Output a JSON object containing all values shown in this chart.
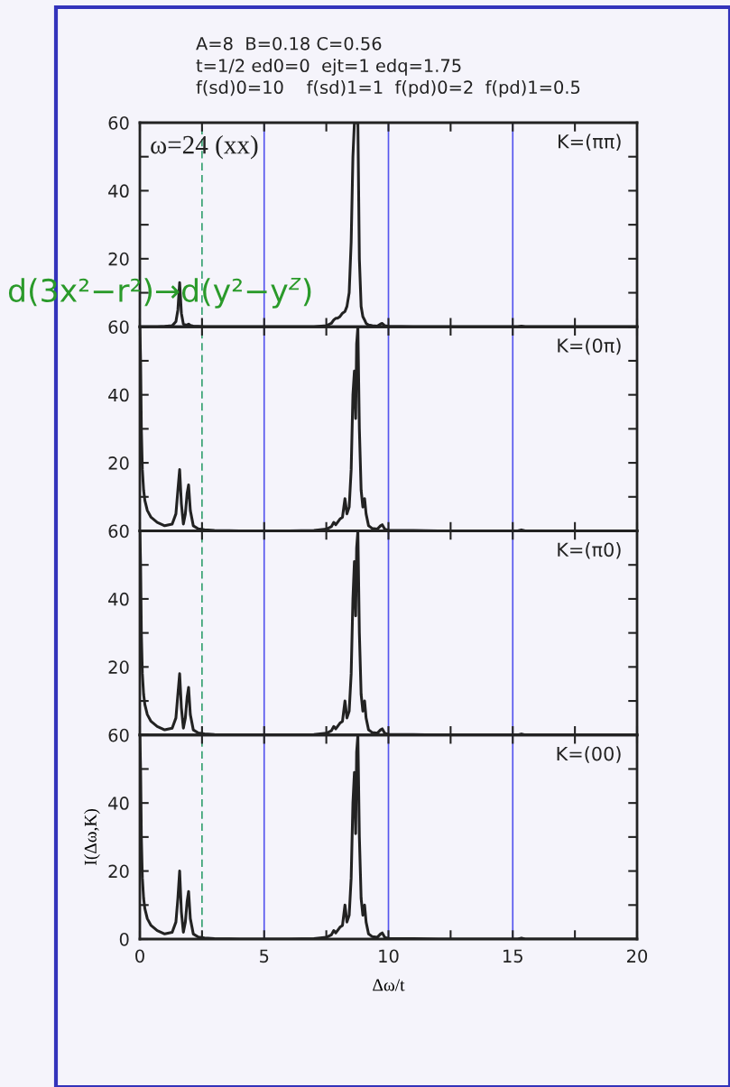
{
  "chart_data": [
    {
      "type": "line",
      "title": "A=8  B=0.18 C=0.56",
      "subtitle": "t=1/2 ed0=0  ejt=1 edq=1.75\nf(sd)0=10    f(sd)1=1  f(pd)0=2  f(pd)1=0.5",
      "annotations": [
        "K=(ππ)",
        "ω=24 (xx)",
        "d(3x²−r²)→d(y²−y$^{z}$)"
      ],
      "x": [
        0,
        0.03,
        0.06,
        0.1,
        0.15,
        0.2,
        0.3,
        0.45,
        0.7,
        1.0,
        1.3,
        1.45,
        1.53,
        1.6,
        1.67,
        1.75,
        1.83,
        1.9,
        1.96,
        2.03,
        2.15,
        2.35,
        2.6,
        3.0,
        4.0,
        5.0,
        6.0,
        7.0,
        7.5,
        7.7,
        7.8,
        7.88,
        7.95,
        8.05,
        8.15,
        8.25,
        8.33,
        8.42,
        8.5,
        8.57,
        8.63,
        8.68,
        8.72,
        8.77,
        8.83,
        8.9,
        8.97,
        9.04,
        9.1,
        9.2,
        9.35,
        9.55,
        9.68,
        9.75,
        9.85,
        10.0,
        11,
        12,
        14,
        15.2,
        15.35,
        15.5,
        17,
        20
      ],
      "series": [
        {
          "color": "#222222",
          "values": [
            0,
            0,
            0,
            0,
            0,
            0,
            0,
            0,
            0,
            0.1,
            0.3,
            1.5,
            5,
            13,
            4,
            0.8,
            0.6,
            0.5,
            0.8,
            0.4,
            0.2,
            0.1,
            0,
            0,
            0,
            0,
            0,
            0,
            0.3,
            1,
            2,
            2.5,
            2.5,
            3,
            4,
            4.5,
            6,
            10,
            25,
            50,
            60,
            60,
            60,
            60,
            20,
            6,
            3,
            2,
            1,
            0.5,
            0.3,
            0.2,
            0.8,
            1,
            0.3,
            0.1,
            0,
            0,
            0,
            0,
            0.2,
            0,
            0,
            0
          ]
        }
      ],
      "xlim": [
        0,
        20
      ],
      "xticks": [
        0,
        {
          "value": 2.5,
          "label": null
        },
        5,
        {
          "value": 7.5,
          "label": null
        },
        10,
        {
          "value": 12.5,
          "label": null
        },
        15,
        {
          "value": 17.5,
          "label": null
        },
        20
      ],
      "ylim": [
        0,
        60
      ],
      "yticks": [
        {
          "value": 0,
          "label": null
        },
        {
          "value": 10,
          "label": null
        },
        20,
        {
          "value": 30,
          "label": null
        },
        40,
        {
          "value": 50,
          "label": null
        },
        60
      ],
      "tick_labels": "y",
      "grid": false,
      "line_style": "solid",
      "marker": "none",
      "ref_lines": [
        {
          "axis": "x",
          "value": 2.5,
          "color": "#33a070",
          "line_style": "dashed"
        },
        {
          "axis": "x",
          "value": 5,
          "color": "#5555ee",
          "line_style": "solid"
        },
        {
          "axis": "x",
          "value": 10,
          "color": "#5555ee",
          "line_style": "solid"
        },
        {
          "axis": "x",
          "value": 15,
          "color": "#5555ee",
          "line_style": "solid"
        }
      ]
    },
    {
      "type": "line",
      "annotations": [
        "K=(0π)"
      ],
      "x": [
        0,
        0.03,
        0.06,
        0.1,
        0.15,
        0.2,
        0.3,
        0.45,
        0.7,
        1.0,
        1.3,
        1.45,
        1.53,
        1.6,
        1.67,
        1.75,
        1.83,
        1.9,
        1.96,
        2.03,
        2.15,
        2.35,
        2.6,
        3.0,
        4.0,
        5.0,
        6.0,
        7.0,
        7.5,
        7.7,
        7.8,
        7.88,
        7.95,
        8.05,
        8.15,
        8.25,
        8.33,
        8.42,
        8.5,
        8.57,
        8.63,
        8.68,
        8.72,
        8.77,
        8.83,
        8.9,
        8.97,
        9.04,
        9.1,
        9.2,
        9.35,
        9.55,
        9.68,
        9.75,
        9.85,
        10.0,
        11,
        12,
        14,
        15.2,
        15.35,
        15.5,
        17,
        20
      ],
      "series": [
        {
          "color": "#222222",
          "values": [
            60,
            50,
            30,
            18,
            12,
            9,
            6,
            4,
            2.5,
            1.5,
            2,
            5,
            12,
            18,
            8,
            2,
            5,
            11,
            13.5,
            6,
            1.5,
            0.6,
            0.3,
            0.1,
            0,
            0,
            0,
            0.1,
            0.5,
            1.2,
            2.5,
            1.8,
            2.5,
            3.5,
            4,
            9.5,
            5,
            7,
            18,
            40,
            47,
            33,
            55,
            60,
            30,
            12,
            7,
            9.5,
            5,
            1.5,
            0.7,
            0.5,
            1.5,
            1.8,
            0.5,
            0.2,
            0.1,
            0,
            0,
            0,
            0.3,
            0,
            0,
            0
          ]
        }
      ],
      "xlim": [
        0,
        20
      ],
      "xticks": [
        0,
        {
          "value": 2.5,
          "label": null
        },
        5,
        {
          "value": 7.5,
          "label": null
        },
        10,
        {
          "value": 12.5,
          "label": null
        },
        15,
        {
          "value": 17.5,
          "label": null
        },
        20
      ],
      "ylim": [
        0,
        60
      ],
      "yticks": [
        {
          "value": 0,
          "label": null
        },
        {
          "value": 10,
          "label": null
        },
        20,
        {
          "value": 30,
          "label": null
        },
        40,
        {
          "value": 50,
          "label": null
        },
        60
      ],
      "tick_labels": "y",
      "grid": false,
      "line_style": "solid",
      "marker": "none",
      "ref_lines": [
        {
          "axis": "x",
          "value": 2.5,
          "color": "#33a070",
          "line_style": "dashed"
        },
        {
          "axis": "x",
          "value": 5,
          "color": "#5555ee",
          "line_style": "solid"
        },
        {
          "axis": "x",
          "value": 10,
          "color": "#5555ee",
          "line_style": "solid"
        },
        {
          "axis": "x",
          "value": 15,
          "color": "#5555ee",
          "line_style": "solid"
        }
      ]
    },
    {
      "type": "line",
      "annotations": [
        "K=(π0)"
      ],
      "x": [
        0,
        0.03,
        0.06,
        0.1,
        0.15,
        0.2,
        0.3,
        0.45,
        0.7,
        1.0,
        1.3,
        1.45,
        1.53,
        1.6,
        1.67,
        1.75,
        1.83,
        1.9,
        1.96,
        2.03,
        2.15,
        2.35,
        2.6,
        3.0,
        4.0,
        5.0,
        6.0,
        7.0,
        7.5,
        7.7,
        7.8,
        7.88,
        7.95,
        8.05,
        8.15,
        8.25,
        8.33,
        8.42,
        8.5,
        8.57,
        8.63,
        8.68,
        8.72,
        8.77,
        8.83,
        8.9,
        8.97,
        9.04,
        9.1,
        9.2,
        9.35,
        9.55,
        9.68,
        9.75,
        9.85,
        10.0,
        11,
        12,
        14,
        15.2,
        15.35,
        15.5,
        17,
        20
      ],
      "series": [
        {
          "color": "#222222",
          "values": [
            60,
            50,
            30,
            18,
            12,
            9,
            6,
            4,
            2.5,
            1.5,
            2,
            5,
            12,
            18,
            8,
            2,
            5,
            11,
            14,
            6,
            1.5,
            0.6,
            0.3,
            0.1,
            0,
            0,
            0,
            0.1,
            0.5,
            1.2,
            2.5,
            1.8,
            2.5,
            3.5,
            4,
            10,
            5,
            7,
            18,
            40,
            51,
            35,
            55,
            60,
            30,
            12,
            7,
            10,
            5,
            1.5,
            0.7,
            0.5,
            1.5,
            1.8,
            0.5,
            0.2,
            0.1,
            0,
            0,
            0,
            0.3,
            0,
            0,
            0
          ]
        }
      ],
      "xlim": [
        0,
        20
      ],
      "xticks": [
        0,
        {
          "value": 2.5,
          "label": null
        },
        5,
        {
          "value": 7.5,
          "label": null
        },
        10,
        {
          "value": 12.5,
          "label": null
        },
        15,
        {
          "value": 17.5,
          "label": null
        },
        20
      ],
      "ylim": [
        0,
        60
      ],
      "yticks": [
        {
          "value": 0,
          "label": null
        },
        {
          "value": 10,
          "label": null
        },
        20,
        {
          "value": 30,
          "label": null
        },
        40,
        {
          "value": 50,
          "label": null
        },
        60
      ],
      "tick_labels": "y",
      "grid": false,
      "line_style": "solid",
      "marker": "none",
      "ref_lines": [
        {
          "axis": "x",
          "value": 2.5,
          "color": "#33a070",
          "line_style": "dashed"
        },
        {
          "axis": "x",
          "value": 5,
          "color": "#5555ee",
          "line_style": "solid"
        },
        {
          "axis": "x",
          "value": 10,
          "color": "#5555ee",
          "line_style": "solid"
        },
        {
          "axis": "x",
          "value": 15,
          "color": "#5555ee",
          "line_style": "solid"
        }
      ]
    },
    {
      "type": "line",
      "annotations": [
        "K=(00)"
      ],
      "xlabel": "Δω/t",
      "ylabel": "I(Δω,K)",
      "x": [
        0,
        0.03,
        0.06,
        0.1,
        0.15,
        0.2,
        0.3,
        0.45,
        0.7,
        1.0,
        1.3,
        1.45,
        1.53,
        1.6,
        1.67,
        1.75,
        1.83,
        1.9,
        1.96,
        2.03,
        2.15,
        2.35,
        2.6,
        3.0,
        4.0,
        5.0,
        6.0,
        7.0,
        7.5,
        7.7,
        7.8,
        7.88,
        7.95,
        8.05,
        8.15,
        8.25,
        8.33,
        8.42,
        8.5,
        8.57,
        8.63,
        8.68,
        8.72,
        8.77,
        8.83,
        8.9,
        8.97,
        9.04,
        9.1,
        9.2,
        9.35,
        9.55,
        9.68,
        9.75,
        9.85,
        10.0,
        11,
        12,
        14,
        15.2,
        15.35,
        15.5,
        17,
        20
      ],
      "series": [
        {
          "color": "#222222",
          "values": [
            60,
            50,
            30,
            18,
            12,
            9,
            6,
            4,
            2.5,
            1.5,
            2,
            5,
            12,
            20,
            8,
            2,
            5,
            11,
            14,
            6,
            1.5,
            0.6,
            0.3,
            0.1,
            0,
            0,
            0,
            0.1,
            0.5,
            1.2,
            2.5,
            1.8,
            2.5,
            3.5,
            4,
            10,
            5,
            7,
            18,
            40,
            49,
            31,
            55,
            60,
            30,
            12,
            7,
            10,
            5,
            1.5,
            0.7,
            0.5,
            1.5,
            1.8,
            0.5,
            0.2,
            0.1,
            0,
            0,
            0,
            0.3,
            0,
            0,
            0
          ]
        }
      ],
      "xlim": [
        0,
        20
      ],
      "xticks": [
        0,
        {
          "value": 2.5,
          "label": null
        },
        5,
        {
          "value": 7.5,
          "label": null
        },
        10,
        {
          "value": 12.5,
          "label": null
        },
        15,
        {
          "value": 17.5,
          "label": null
        },
        20
      ],
      "ylim": [
        0,
        60
      ],
      "yticks": [
        0,
        {
          "value": 10,
          "label": null
        },
        20,
        {
          "value": 30,
          "label": null
        },
        40,
        {
          "value": 50,
          "label": null
        },
        60
      ],
      "grid": false,
      "line_style": "solid",
      "marker": "none",
      "ref_lines": [
        {
          "axis": "x",
          "value": 2.5,
          "color": "#33a070",
          "line_style": "dashed"
        },
        {
          "axis": "x",
          "value": 5,
          "color": "#5555ee",
          "line_style": "solid"
        },
        {
          "axis": "x",
          "value": 10,
          "color": "#5555ee",
          "line_style": "solid"
        },
        {
          "axis": "x",
          "value": 15,
          "color": "#5555ee",
          "line_style": "solid"
        }
      ]
    }
  ]
}
